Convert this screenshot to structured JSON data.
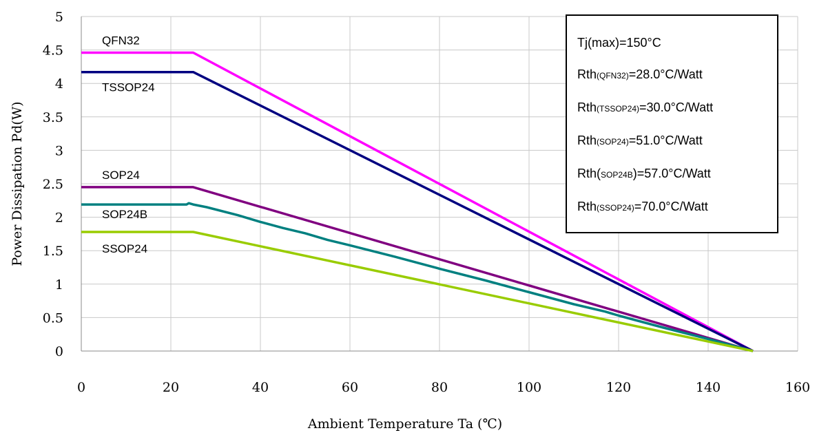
{
  "chart_data": {
    "type": "line",
    "xlabel": "Ambient Temperature Ta (℃)",
    "ylabel": "Power Dissipation Pd(W)",
    "xlim": [
      0,
      160
    ],
    "ylim": [
      0,
      5
    ],
    "x_ticks": [
      "0",
      "20",
      "40",
      "60",
      "80",
      "100",
      "120",
      "140",
      "160"
    ],
    "y_ticks": [
      "0",
      "0.5",
      "1",
      "1.5",
      "2",
      "2.5",
      "3",
      "3.5",
      "4",
      "4.5",
      "5"
    ],
    "grid": true,
    "series": [
      {
        "name": "QFN32",
        "color": "#ff00ff",
        "points": [
          [
            0,
            4.46
          ],
          [
            25,
            4.46
          ],
          [
            150,
            0
          ]
        ]
      },
      {
        "name": "TSSOP24",
        "color": "#000080",
        "points": [
          [
            0,
            4.17
          ],
          [
            25,
            4.17
          ],
          [
            150,
            0
          ]
        ]
      },
      {
        "name": "SOP24",
        "color": "#800080",
        "points": [
          [
            0,
            2.45
          ],
          [
            25,
            2.45
          ],
          [
            150,
            0
          ]
        ]
      },
      {
        "name": "SOP24B",
        "color": "#008080",
        "points": [
          [
            0,
            2.19
          ],
          [
            23.5,
            2.19
          ],
          [
            24,
            2.21
          ],
          [
            25,
            2.19
          ],
          [
            28,
            2.15
          ],
          [
            35,
            2.03
          ],
          [
            40,
            1.93
          ],
          [
            45,
            1.84
          ],
          [
            50,
            1.76
          ],
          [
            55,
            1.66
          ],
          [
            60,
            1.58
          ],
          [
            70,
            1.41
          ],
          [
            80,
            1.23
          ],
          [
            90,
            1.06
          ],
          [
            100,
            0.88
          ],
          [
            110,
            0.7
          ],
          [
            117,
            0.59
          ],
          [
            120,
            0.53
          ],
          [
            130,
            0.35
          ],
          [
            140,
            0.18
          ],
          [
            150,
            0
          ]
        ]
      },
      {
        "name": "SSOP24",
        "color": "#99cc00",
        "points": [
          [
            0,
            1.78
          ],
          [
            25,
            1.78
          ],
          [
            150,
            0
          ]
        ]
      }
    ],
    "note": {
      "title": "Tj(max)=150°C",
      "rows": [
        {
          "pre": "Rth",
          "sub": "(QFN32)",
          "post": "=28.0°C/Watt"
        },
        {
          "pre": "Rth",
          "sub": "(TSSOP24)",
          "post": "=30.0°C/Watt"
        },
        {
          "pre": "Rth",
          "sub": "(SOP24)",
          "post": "=51.0°C/Watt"
        },
        {
          "pre": "Rth(",
          "sub": "SOP24B",
          "post": ")=57.0°C/Watt"
        },
        {
          "pre": "Rth",
          "sub": "(SSOP24)",
          "post": "=70.0°C/Watt"
        }
      ]
    }
  }
}
